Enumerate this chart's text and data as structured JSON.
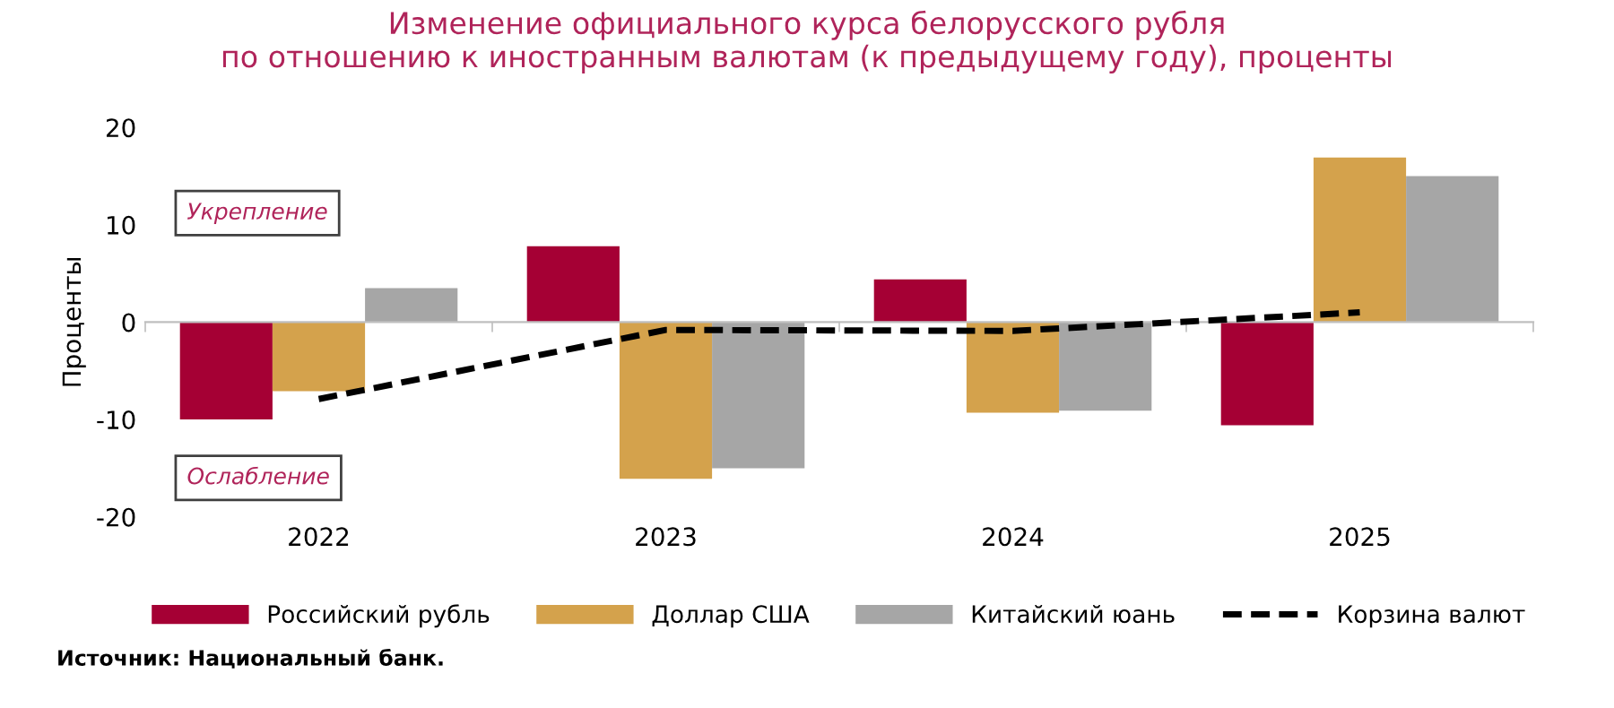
{
  "chart_data": {
    "type": "bar",
    "title": "Изменение официального курса белорусского рубля\nпо отношению к иностранным валютам (к предыдущему году), проценты",
    "ylabel": "Проценты",
    "categories": [
      "2022",
      "2023",
      "2024",
      "2025"
    ],
    "series": [
      {
        "name": "Российский рубль",
        "color": "#a50034",
        "values": [
          -10.0,
          7.8,
          4.4,
          -10.6
        ]
      },
      {
        "name": "Доллар США",
        "color": "#d4a24c",
        "values": [
          -7.1,
          -16.1,
          -9.3,
          16.9
        ]
      },
      {
        "name": "Китайский юань",
        "color": "#a6a6a6",
        "values": [
          3.5,
          -15.0,
          -9.1,
          15.0
        ]
      },
      {
        "name": "Корзина валют",
        "type": "line",
        "color": "#000000",
        "line_style": "dashed",
        "values": [
          -7.9,
          -0.8,
          -0.9,
          1.0
        ]
      }
    ],
    "ylim": [
      -20,
      20
    ],
    "yticks": [
      -20,
      -10,
      0,
      10,
      20
    ],
    "legend": "bottom",
    "annotations": [
      {
        "text": "Укрепление"
      },
      {
        "text": "Ослабление"
      },
      {
        "text": "Источник: Национальный банк."
      }
    ]
  }
}
